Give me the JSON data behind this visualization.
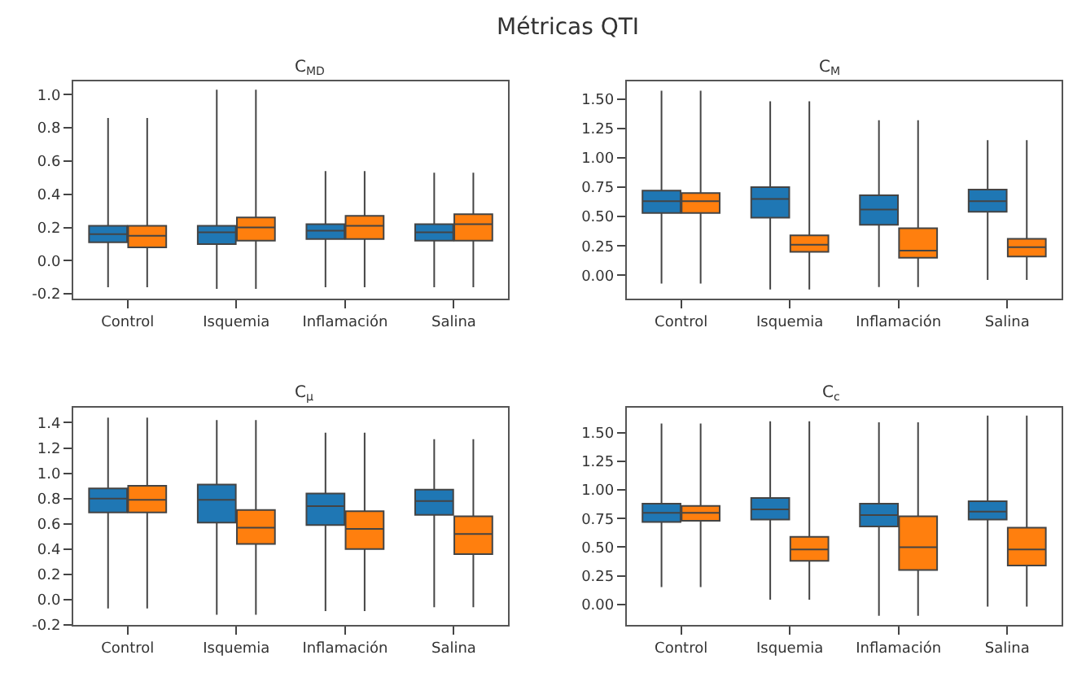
{
  "chart_data": [
    {
      "type": "box",
      "title": "C$_{MD}$",
      "annotations": [
        "Métricas QTI"
      ],
      "categories": [
        "Control",
        "Isquemia",
        "Inflamación",
        "Salina"
      ],
      "ylim": [
        -0.23,
        1.08
      ],
      "yticks": [
        -0.2,
        {
          "value": 0,
          "label": "0.0"
        },
        0.2,
        0.4,
        0.6,
        0.8,
        {
          "value": 1,
          "label": "1.0"
        }
      ],
      "series": [
        {
          "color": "#1f77b4",
          "boxes": [
            {
              "low": -0.16,
              "q1": 0.11,
              "median": 0.16,
              "q3": 0.21,
              "high": 0.86
            },
            {
              "low": -0.17,
              "q1": 0.1,
              "median": 0.17,
              "q3": 0.21,
              "high": 1.03
            },
            {
              "low": -0.16,
              "q1": 0.13,
              "median": 0.18,
              "q3": 0.22,
              "high": 0.54
            },
            {
              "low": -0.16,
              "q1": 0.12,
              "median": 0.17,
              "q3": 0.22,
              "high": 0.53
            }
          ]
        },
        {
          "color": "#ff7f0e",
          "boxes": [
            {
              "low": -0.16,
              "q1": 0.08,
              "median": 0.15,
              "q3": 0.21,
              "high": 0.86
            },
            {
              "low": -0.17,
              "q1": 0.12,
              "median": 0.2,
              "q3": 0.26,
              "high": 1.03
            },
            {
              "low": -0.16,
              "q1": 0.13,
              "median": 0.21,
              "q3": 0.27,
              "high": 0.54
            },
            {
              "low": -0.16,
              "q1": 0.12,
              "median": 0.22,
              "q3": 0.28,
              "high": 0.53
            }
          ]
        }
      ]
    },
    {
      "type": "box",
      "title": "C$_{M}$",
      "categories": [
        "Control",
        "Isquemia",
        "Inflamación",
        "Salina"
      ],
      "ylim": [
        -0.2,
        1.65
      ],
      "yticks": [
        {
          "value": 0,
          "label": "0.00"
        },
        {
          "value": 0.25,
          "label": "0.25"
        },
        {
          "value": 0.5,
          "label": "0.50"
        },
        {
          "value": 0.75,
          "label": "0.75"
        },
        {
          "value": 1,
          "label": "1.00"
        },
        {
          "value": 1.25,
          "label": "1.25"
        },
        {
          "value": 1.5,
          "label": "1.50"
        }
      ],
      "series": [
        {
          "color": "#1f77b4",
          "boxes": [
            {
              "low": -0.07,
              "q1": 0.53,
              "median": 0.63,
              "q3": 0.72,
              "high": 1.57
            },
            {
              "low": -0.12,
              "q1": 0.49,
              "median": 0.65,
              "q3": 0.75,
              "high": 1.48
            },
            {
              "low": -0.1,
              "q1": 0.43,
              "median": 0.56,
              "q3": 0.68,
              "high": 1.32
            },
            {
              "low": -0.04,
              "q1": 0.54,
              "median": 0.63,
              "q3": 0.73,
              "high": 1.15
            }
          ]
        },
        {
          "color": "#ff7f0e",
          "boxes": [
            {
              "low": -0.07,
              "q1": 0.53,
              "median": 0.63,
              "q3": 0.7,
              "high": 1.57
            },
            {
              "low": -0.12,
              "q1": 0.2,
              "median": 0.26,
              "q3": 0.34,
              "high": 1.48
            },
            {
              "low": -0.1,
              "q1": 0.15,
              "median": 0.21,
              "q3": 0.4,
              "high": 1.32
            },
            {
              "low": -0.04,
              "q1": 0.16,
              "median": 0.24,
              "q3": 0.31,
              "high": 1.15
            }
          ]
        }
      ]
    },
    {
      "type": "box",
      "title": "C$_{μ}$",
      "categories": [
        "Control",
        "Isquemia",
        "Inflamación",
        "Salina"
      ],
      "ylim": [
        -0.2,
        1.52
      ],
      "yticks": [
        -0.2,
        {
          "value": 0,
          "label": "0.0"
        },
        0.2,
        0.4,
        0.6,
        0.8,
        {
          "value": 1,
          "label": "1.0"
        },
        1.2,
        1.4
      ],
      "series": [
        {
          "color": "#1f77b4",
          "boxes": [
            {
              "low": -0.07,
              "q1": 0.69,
              "median": 0.8,
              "q3": 0.88,
              "high": 1.44
            },
            {
              "low": -0.12,
              "q1": 0.61,
              "median": 0.79,
              "q3": 0.91,
              "high": 1.42
            },
            {
              "low": -0.09,
              "q1": 0.59,
              "median": 0.74,
              "q3": 0.84,
              "high": 1.32
            },
            {
              "low": -0.06,
              "q1": 0.67,
              "median": 0.78,
              "q3": 0.87,
              "high": 1.27
            }
          ]
        },
        {
          "color": "#ff7f0e",
          "boxes": [
            {
              "low": -0.07,
              "q1": 0.69,
              "median": 0.79,
              "q3": 0.9,
              "high": 1.44
            },
            {
              "low": -0.12,
              "q1": 0.44,
              "median": 0.57,
              "q3": 0.71,
              "high": 1.42
            },
            {
              "low": -0.09,
              "q1": 0.4,
              "median": 0.56,
              "q3": 0.7,
              "high": 1.32
            },
            {
              "low": -0.06,
              "q1": 0.36,
              "median": 0.52,
              "q3": 0.66,
              "high": 1.27
            }
          ]
        }
      ]
    },
    {
      "type": "box",
      "title": "C$_{c}$",
      "categories": [
        "Control",
        "Isquemia",
        "Inflamación",
        "Salina"
      ],
      "ylim": [
        -0.18,
        1.72
      ],
      "yticks": [
        {
          "value": 0,
          "label": "0.00"
        },
        {
          "value": 0.25,
          "label": "0.25"
        },
        {
          "value": 0.5,
          "label": "0.50"
        },
        {
          "value": 0.75,
          "label": "0.75"
        },
        {
          "value": 1,
          "label": "1.00"
        },
        {
          "value": 1.25,
          "label": "1.25"
        },
        {
          "value": 1.5,
          "label": "1.50"
        }
      ],
      "series": [
        {
          "color": "#1f77b4",
          "boxes": [
            {
              "low": 0.15,
              "q1": 0.72,
              "median": 0.8,
              "q3": 0.88,
              "high": 1.58
            },
            {
              "low": 0.04,
              "q1": 0.74,
              "median": 0.83,
              "q3": 0.93,
              "high": 1.6
            },
            {
              "low": -0.1,
              "q1": 0.68,
              "median": 0.78,
              "q3": 0.88,
              "high": 1.59
            },
            {
              "low": -0.02,
              "q1": 0.74,
              "median": 0.81,
              "q3": 0.9,
              "high": 1.65
            }
          ]
        },
        {
          "color": "#ff7f0e",
          "boxes": [
            {
              "low": 0.15,
              "q1": 0.73,
              "median": 0.8,
              "q3": 0.86,
              "high": 1.58
            },
            {
              "low": 0.04,
              "q1": 0.38,
              "median": 0.48,
              "q3": 0.59,
              "high": 1.6
            },
            {
              "low": -0.1,
              "q1": 0.3,
              "median": 0.5,
              "q3": 0.77,
              "high": 1.59
            },
            {
              "low": -0.02,
              "q1": 0.34,
              "median": 0.48,
              "q3": 0.67,
              "high": 1.65
            }
          ]
        }
      ]
    }
  ]
}
